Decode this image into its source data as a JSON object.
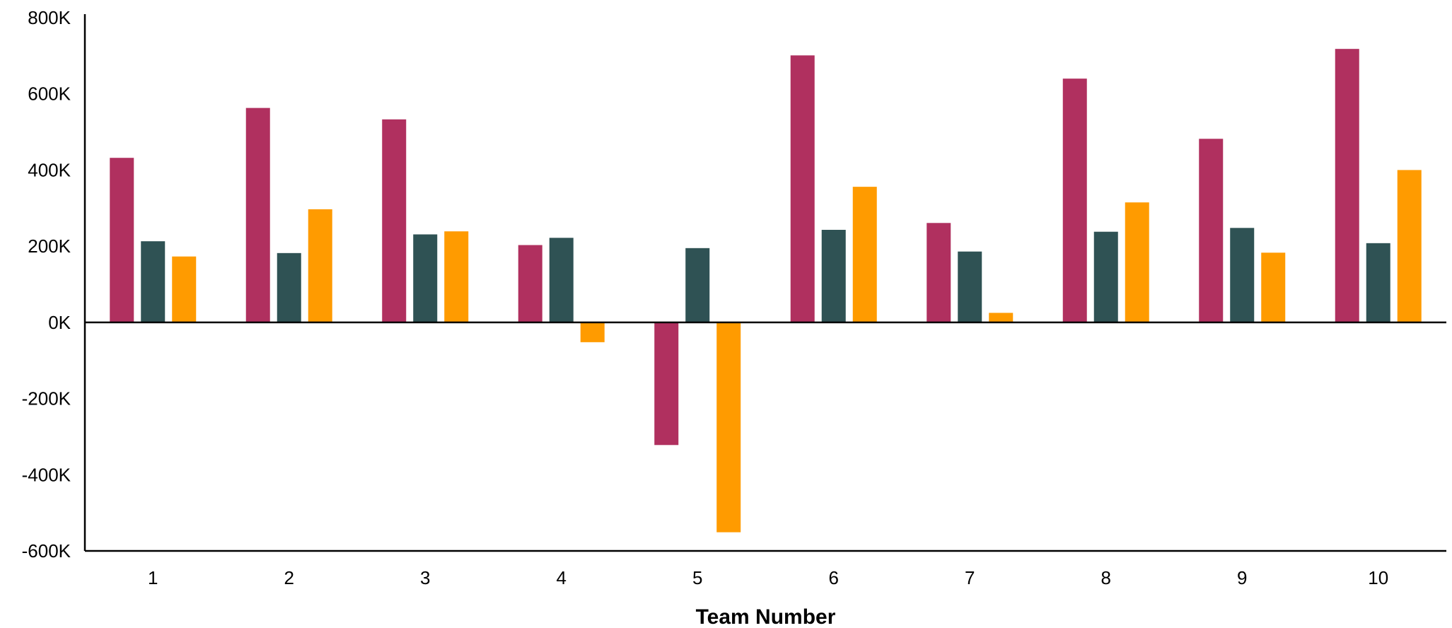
{
  "chart_data": {
    "type": "bar",
    "title": "",
    "xlabel": "Team Number",
    "ylabel": "",
    "ylim": [
      -600000,
      800000
    ],
    "yticks": [
      {
        "value": 800000,
        "label": "800K"
      },
      {
        "value": 600000,
        "label": "600K"
      },
      {
        "value": 400000,
        "label": "400K"
      },
      {
        "value": 200000,
        "label": "200K"
      },
      {
        "value": 0,
        "label": "0K"
      },
      {
        "value": -200000,
        "label": "-200K"
      },
      {
        "value": -400000,
        "label": "-400K"
      },
      {
        "value": -600000,
        "label": "-600K"
      }
    ],
    "grid": false,
    "legend": "none",
    "categories": [
      "1",
      "2",
      "3",
      "4",
      "5",
      "6",
      "7",
      "8",
      "9",
      "10"
    ],
    "series": [
      {
        "color": "#b0305f",
        "values": [
          432000,
          563000,
          533000,
          203000,
          -322000,
          701000,
          261000,
          640000,
          482000,
          718000
        ]
      },
      {
        "color": "#2f5254",
        "values": [
          213000,
          182000,
          231000,
          222000,
          195000,
          243000,
          186000,
          238000,
          248000,
          208000
        ]
      },
      {
        "color": "#ff9b00",
        "values": [
          173000,
          297000,
          239000,
          -52000,
          -551000,
          356000,
          25000,
          315000,
          183000,
          400000
        ]
      }
    ]
  }
}
